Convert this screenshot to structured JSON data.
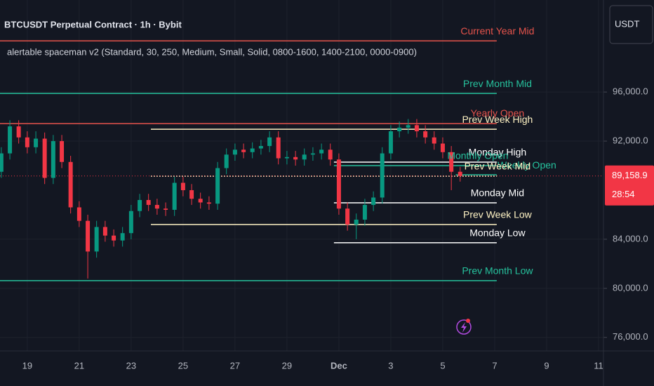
{
  "chart_data": {
    "type": "candlestick",
    "title": "BTCUSDT Perpetual Contract · 1h · Bybit",
    "subtitle": "alertable spaceman v2 (Standard, 30, 250, Medium, Small, Solid, 0800-1600, 1400-2100, 0000-0900)",
    "currency": "USDT",
    "up_color": "#089981",
    "down_color": "#f23645",
    "grid": true,
    "x": [
      18.0,
      18.33,
      18.67,
      19.0,
      19.33,
      19.67,
      20.0,
      20.33,
      20.67,
      21.0,
      21.33,
      21.67,
      22.0,
      22.33,
      22.67,
      23.0,
      23.33,
      23.67,
      24.0,
      24.33,
      24.67,
      25.0,
      25.33,
      25.67,
      26.0,
      26.33,
      26.67,
      27.0,
      27.33,
      27.67,
      28.0,
      28.33,
      28.67,
      29.0,
      29.33,
      29.67,
      30.0,
      30.33,
      30.67,
      31.0,
      31.33,
      31.67,
      32.0,
      32.33,
      32.67,
      33.0,
      33.33,
      33.67,
      34.0,
      34.33,
      34.67,
      35.0,
      35.33,
      35.67
    ],
    "open": [
      89500,
      91000,
      93200,
      92300,
      91500,
      92200,
      89000,
      92000,
      90300,
      86600,
      85500,
      83000,
      85000,
      84300,
      83900,
      84500,
      86300,
      87200,
      86800,
      86500,
      86400,
      88600,
      88000,
      87300,
      87000,
      86900,
      89800,
      90900,
      91300,
      91100,
      91400,
      91600,
      92300,
      90600,
      90700,
      90500,
      90900,
      91000,
      91300,
      90500,
      86500,
      85200,
      85600,
      86800,
      87400,
      91000,
      92800,
      93100,
      93300,
      92800,
      92300,
      91800,
      91100,
      89500
    ],
    "high": [
      91500,
      93700,
      93700,
      92800,
      92800,
      92700,
      92500,
      92500,
      90800,
      87100,
      86000,
      85500,
      85500,
      84800,
      85000,
      86800,
      87700,
      87700,
      87300,
      87000,
      89100,
      89100,
      88500,
      87800,
      87500,
      90300,
      91400,
      91800,
      91800,
      91900,
      92100,
      92800,
      92800,
      91200,
      91200,
      91400,
      91500,
      91800,
      91800,
      91000,
      87000,
      86100,
      87300,
      87900,
      91500,
      93300,
      93600,
      93800,
      93800,
      93300,
      92800,
      92300,
      91600,
      89900
    ],
    "low": [
      89000,
      90500,
      91800,
      91000,
      91000,
      88500,
      88500,
      89800,
      86100,
      85000,
      80800,
      82500,
      83800,
      83400,
      83400,
      84000,
      85800,
      86300,
      86000,
      85900,
      85900,
      87500,
      86800,
      86500,
      86400,
      86400,
      89300,
      90400,
      90600,
      90600,
      90900,
      91100,
      90100,
      90100,
      90000,
      90000,
      90400,
      90500,
      90000,
      86000,
      84700,
      84000,
      85100,
      86300,
      86900,
      90500,
      92300,
      92600,
      92300,
      91800,
      91300,
      90600,
      88000,
      88700
    ],
    "close": [
      91000,
      93200,
      92300,
      91500,
      92200,
      89000,
      92000,
      90300,
      86600,
      85500,
      83000,
      85000,
      84300,
      83900,
      84500,
      86300,
      87200,
      86800,
      86500,
      86400,
      88600,
      88000,
      87300,
      87000,
      86900,
      89800,
      90900,
      91300,
      91100,
      91400,
      91600,
      92300,
      90600,
      90700,
      90500,
      90900,
      91000,
      91300,
      90500,
      86500,
      85200,
      85600,
      86800,
      87400,
      91000,
      92800,
      93100,
      93300,
      92800,
      92300,
      91800,
      91100,
      89500,
      89158.9
    ],
    "xlim": [
      17.95,
      41.19
    ],
    "xticks": [
      19,
      21,
      23,
      25,
      27,
      29,
      {
        "value": 31,
        "label": "Dec"
      },
      {
        "value": 33,
        "label": "3"
      },
      {
        "value": 35,
        "label": "5"
      },
      {
        "value": 37,
        "label": "7"
      },
      {
        "value": 39,
        "label": "9"
      },
      {
        "value": 41,
        "label": "11"
      }
    ],
    "ylim": [
      74900,
      103500
    ],
    "yticks": [
      {
        "value": 96000,
        "label": "96,000.0"
      },
      {
        "value": 92000,
        "label": "92,000.0"
      },
      {
        "value": 84000,
        "label": "84,000.0"
      },
      {
        "value": 80000,
        "label": "80,000.0"
      },
      {
        "value": 76000,
        "label": "76,000.0"
      }
    ],
    "last_price": {
      "value": 89158.9,
      "label": "89,158.9",
      "countdown": "28:54",
      "color": "#f23645"
    },
    "levels": [
      {
        "name": "Current Year Mid",
        "price": 100171,
        "color": "#e5534b",
        "x": [
          17.95,
          37.08
        ],
        "style": "solid"
      },
      {
        "name": "Prev Month Mid",
        "price": 95886,
        "color": "#26c29d",
        "x": [
          17.95,
          37.08
        ],
        "style": "solid"
      },
      {
        "name": "Yearly Open",
        "price": 93429,
        "color": "#e5534b",
        "x": [
          17.95,
          37.08
        ],
        "style": "solid"
      },
      {
        "name": "Prev Week High",
        "price": 92971,
        "color": "#fff3c4",
        "x": [
          23.76,
          37.08
        ],
        "style": "solid"
      },
      {
        "name": "Monday High",
        "price": 90286,
        "color": "#ffffff",
        "x": [
          30.81,
          37.08
        ],
        "style": "solid"
      },
      {
        "name": "Monthly Open",
        "price": 90000,
        "color": "#26c29d",
        "x": [
          30.81,
          37.08
        ],
        "style": "solid"
      },
      {
        "name": "Weekly Open",
        "price": 89250,
        "color": "#26c29d",
        "x": [
          35.5,
          37.08
        ],
        "style": "solid"
      },
      {
        "name": "Prev Week Mid",
        "price": 89143,
        "color": "#fff3c4",
        "x": [
          23.76,
          37.08
        ],
        "style": "dotted"
      },
      {
        "name": "Monday Mid",
        "price": 86971,
        "color": "#ffffff",
        "x": [
          30.81,
          37.08
        ],
        "style": "solid"
      },
      {
        "name": "Prev Week Low",
        "price": 85200,
        "color": "#fff3c4",
        "x": [
          23.76,
          37.08
        ],
        "style": "solid"
      },
      {
        "name": "Monday Low",
        "price": 83714,
        "color": "#ffffff",
        "x": [
          30.81,
          37.08
        ],
        "style": "solid"
      },
      {
        "name": "Prev Month Low",
        "price": 80629,
        "color": "#26c29d",
        "x": [
          17.95,
          37.08
        ],
        "style": "solid"
      }
    ]
  }
}
